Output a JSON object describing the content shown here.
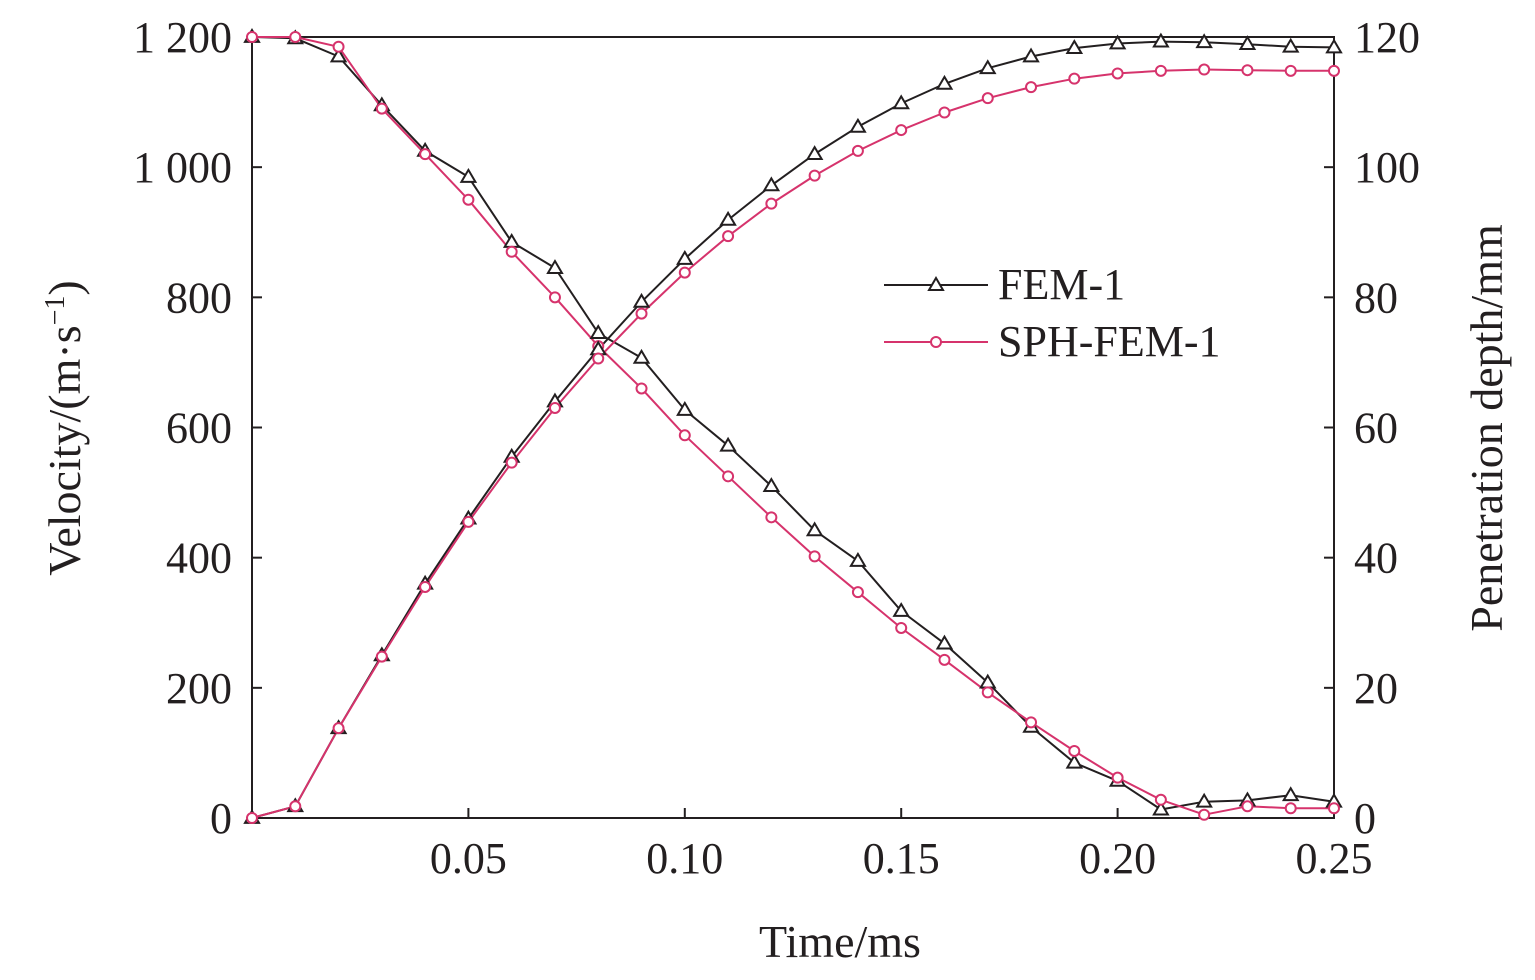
{
  "chart_data": {
    "type": "line",
    "xlabel": "Time/ms",
    "ylabel": "Velocity/(m·s",
    "ylabel_superscript": "−1",
    "ylabel_close": ")",
    "y2label": "Penetration depth/mm",
    "xlim": [
      0,
      0.25
    ],
    "ylim": [
      0,
      1200
    ],
    "y2lim": [
      0,
      120
    ],
    "x_ticks": [
      {
        "value": 0.05,
        "label": "0.05"
      },
      {
        "value": 0.1,
        "label": "0.10"
      },
      {
        "value": 0.15,
        "label": "0.15"
      },
      {
        "value": 0.2,
        "label": "0.20"
      },
      {
        "value": 0.25,
        "label": "0.25"
      }
    ],
    "y_ticks": [
      {
        "value": 0,
        "label": "0"
      },
      {
        "value": 200,
        "label": "200"
      },
      {
        "value": 400,
        "label": "400"
      },
      {
        "value": 600,
        "label": "600"
      },
      {
        "value": 800,
        "label": "800"
      },
      {
        "value": 1000,
        "label": "1 000"
      },
      {
        "value": 1200,
        "label": "1 200"
      }
    ],
    "y2_ticks": [
      {
        "value": 0,
        "label": "0"
      },
      {
        "value": 20,
        "label": "20"
      },
      {
        "value": 40,
        "label": "40"
      },
      {
        "value": 60,
        "label": "60"
      },
      {
        "value": 80,
        "label": "80"
      },
      {
        "value": 100,
        "label": "100"
      },
      {
        "value": 120,
        "label": "120"
      }
    ],
    "grid": false,
    "legend_position": "center-right",
    "legend": [
      {
        "name": "FEM-1",
        "marker": "triangle",
        "color": "#231f20"
      },
      {
        "name": "SPH-FEM-1",
        "marker": "circle",
        "color": "#d6336c"
      }
    ],
    "series": [
      {
        "name": "FEM-1",
        "quantity": "velocity",
        "axis": "left",
        "marker": "triangle",
        "color": "#231f20",
        "x": [
          0,
          0.01,
          0.02,
          0.03,
          0.04,
          0.05,
          0.06,
          0.07,
          0.08,
          0.09,
          0.1,
          0.11,
          0.12,
          0.13,
          0.14,
          0.15,
          0.16,
          0.17,
          0.18,
          0.19,
          0.2,
          0.21,
          0.22,
          0.23,
          0.24,
          0.25
        ],
        "y": [
          1200,
          1198,
          1170,
          1095,
          1025,
          985,
          885,
          845,
          745,
          707,
          627,
          572,
          510,
          442,
          395,
          318,
          268,
          208,
          140,
          85,
          57,
          13,
          25,
          27,
          35,
          25
        ]
      },
      {
        "name": "SPH-FEM-1",
        "quantity": "velocity",
        "axis": "left",
        "marker": "circle",
        "color": "#d6336c",
        "x": [
          0,
          0.01,
          0.02,
          0.03,
          0.04,
          0.05,
          0.06,
          0.07,
          0.08,
          0.09,
          0.1,
          0.11,
          0.12,
          0.13,
          0.14,
          0.15,
          0.16,
          0.17,
          0.18,
          0.19,
          0.2,
          0.21,
          0.22,
          0.23,
          0.24,
          0.25
        ],
        "y": [
          1200,
          1200,
          1185,
          1090,
          1020,
          950,
          870,
          800,
          725,
          660,
          588,
          525,
          462,
          402,
          347,
          292,
          243,
          193,
          147,
          103,
          62,
          28,
          5,
          18,
          15,
          15
        ]
      },
      {
        "name": "FEM-1",
        "quantity": "penetration depth",
        "axis": "right",
        "marker": "triangle",
        "color": "#231f20",
        "x": [
          0,
          0.01,
          0.02,
          0.03,
          0.04,
          0.05,
          0.06,
          0.07,
          0.08,
          0.09,
          0.1,
          0.11,
          0.12,
          0.13,
          0.14,
          0.15,
          0.16,
          0.17,
          0.18,
          0.19,
          0.2,
          0.21,
          0.22,
          0.23,
          0.24,
          0.25
        ],
        "y": [
          0,
          1.8,
          13.8,
          25,
          36,
          46,
          55.5,
          64,
          72,
          79.3,
          85.9,
          91.9,
          97.2,
          102,
          106.2,
          109.8,
          112.8,
          115.2,
          117,
          118.3,
          119,
          119.3,
          119.2,
          118.9,
          118.5,
          118.4
        ]
      },
      {
        "name": "SPH-FEM-1",
        "quantity": "penetration depth",
        "axis": "right",
        "marker": "circle",
        "color": "#d6336c",
        "x": [
          0,
          0.01,
          0.02,
          0.03,
          0.04,
          0.05,
          0.06,
          0.07,
          0.08,
          0.09,
          0.1,
          0.11,
          0.12,
          0.13,
          0.14,
          0.15,
          0.16,
          0.17,
          0.18,
          0.19,
          0.2,
          0.21,
          0.22,
          0.23,
          0.24,
          0.25
        ],
        "y": [
          0,
          1.8,
          13.8,
          24.8,
          35.5,
          45.5,
          54.6,
          63,
          70.6,
          77.5,
          83.8,
          89.4,
          94.4,
          98.7,
          102.5,
          105.7,
          108.4,
          110.6,
          112.3,
          113.6,
          114.4,
          114.8,
          115,
          114.9,
          114.8,
          114.8
        ]
      }
    ]
  }
}
